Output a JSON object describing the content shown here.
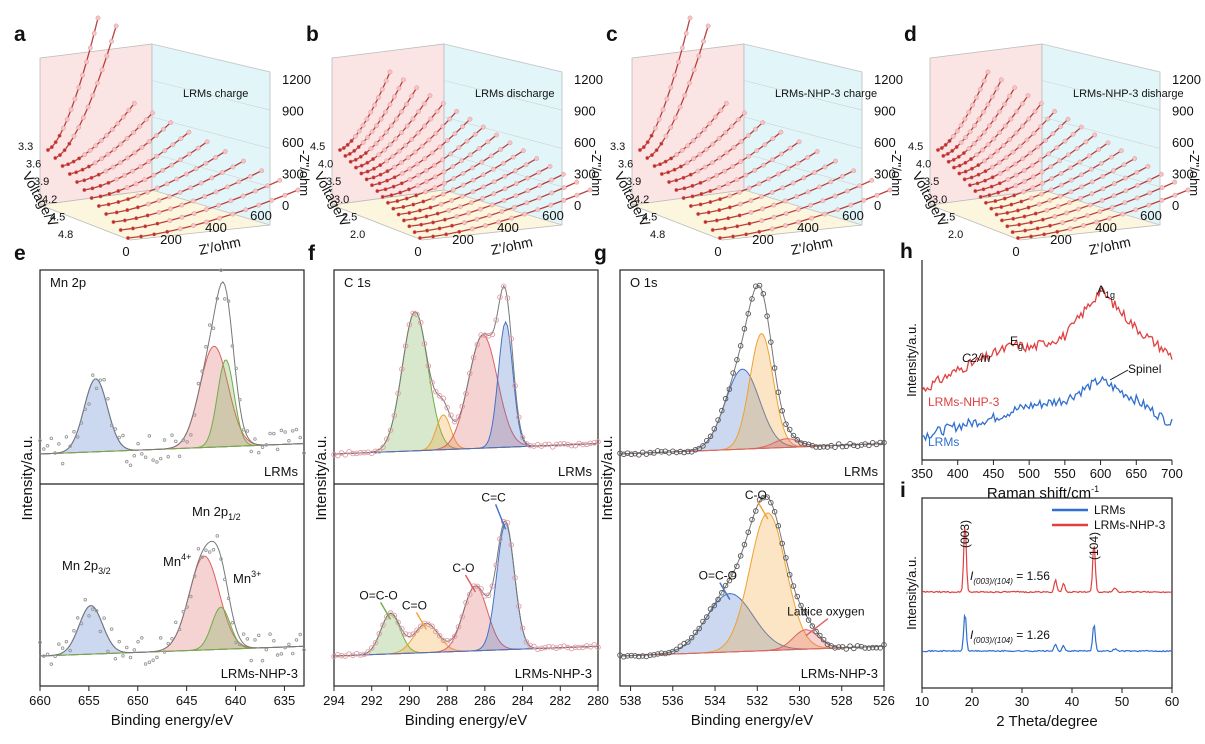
{
  "chart_data": [
    {
      "id": "a",
      "panel_label": "a",
      "type": "scatter",
      "title": "LRMs charge",
      "xlabel": "Z'/ohm",
      "ylabel": "-Z''/ohm",
      "zlabel": "Voltage/V",
      "x_ticks": [
        "0",
        "200",
        "400",
        "600"
      ],
      "z_ticks": [
        "0",
        "300",
        "600",
        "900",
        "1200"
      ],
      "voltage_ticks": [
        "3.3",
        "3.6",
        "3.9",
        "4.2",
        "4.5",
        "4.8"
      ],
      "xlim": [
        0,
        600
      ],
      "zlim": [
        0,
        1200
      ],
      "series_count": 12
    },
    {
      "id": "b",
      "panel_label": "b",
      "type": "scatter",
      "title": "LRMs discharge",
      "xlabel": "Z'/ohm",
      "ylabel": "-Z''/ohm",
      "zlabel": "Voltage/V",
      "x_ticks": [
        "0",
        "200",
        "400",
        "600"
      ],
      "z_ticks": [
        "0",
        "300",
        "600",
        "900",
        "1200"
      ],
      "voltage_ticks": [
        "4.5",
        "4.0",
        "3.5",
        "3.0",
        "2.5",
        "2.0"
      ],
      "xlim": [
        0,
        600
      ],
      "zlim": [
        0,
        1200
      ],
      "series_count": 16
    },
    {
      "id": "c",
      "panel_label": "c",
      "type": "scatter",
      "title": "LRMs-NHP-3 charge",
      "xlabel": "Z'/ohm",
      "ylabel": "-Z''/ohm",
      "zlabel": "Voltage/V",
      "x_ticks": [
        "0",
        "200",
        "400",
        "600"
      ],
      "z_ticks": [
        "0",
        "300",
        "600",
        "900",
        "1200"
      ],
      "voltage_ticks": [
        "3.3",
        "3.6",
        "3.9",
        "4.2",
        "4.5",
        "4.8"
      ],
      "xlim": [
        0,
        600
      ],
      "zlim": [
        0,
        1200
      ],
      "series_count": 12
    },
    {
      "id": "d",
      "panel_label": "d",
      "type": "scatter",
      "title": "LRMs-NHP-3 disharge",
      "xlabel": "Z'/ohm",
      "ylabel": "-Z''/ohm",
      "zlabel": "Voltage/V",
      "x_ticks": [
        "0",
        "200",
        "400",
        "600"
      ],
      "z_ticks": [
        "0",
        "300",
        "600",
        "900",
        "1200"
      ],
      "voltage_ticks": [
        "4.5",
        "4.0",
        "3.5",
        "3.0",
        "2.5",
        "2.0"
      ],
      "xlim": [
        0,
        600
      ],
      "zlim": [
        0,
        1200
      ],
      "series_count": 16
    },
    {
      "id": "e",
      "panel_label": "e",
      "type": "line",
      "title": "Mn 2p",
      "xlabel": "Binding energy/eV",
      "ylabel": "Intensity/a.u.",
      "x_ticks": [
        "660",
        "655",
        "650",
        "645",
        "640",
        "635"
      ],
      "xlim": [
        660,
        633
      ],
      "subpanels": [
        {
          "sample": "LRMs",
          "peaks": [
            {
              "label": "",
              "center": 654.3,
              "height": 0.42,
              "fwhm": 2.8,
              "color": "#4472c4"
            },
            {
              "label": "",
              "center": 642.2,
              "height": 0.58,
              "fwhm": 3.4,
              "color": "#e06060"
            },
            {
              "label": "",
              "center": 641.0,
              "height": 0.5,
              "fwhm": 2.0,
              "color": "#70ad47"
            }
          ],
          "annotations": []
        },
        {
          "sample": "LRMs-NHP-3",
          "peaks": [
            {
              "label": "Mn 2p3/2",
              "center": 654.8,
              "height": 0.3,
              "fwhm": 2.8,
              "color": "#4472c4"
            },
            {
              "label": "Mn4+",
              "center": 643.2,
              "height": 0.58,
              "fwhm": 3.6,
              "color": "#e06060"
            },
            {
              "label": "Mn3+",
              "center": 641.5,
              "height": 0.26,
              "fwhm": 2.2,
              "color": "#70ad47"
            }
          ],
          "annotations": [
            {
              "text": "Mn 2p",
              "sub": "1/2"
            },
            {
              "text": "Mn 2p",
              "sub": "3/2"
            },
            {
              "text": "Mn",
              "sup": "4+"
            },
            {
              "text": "Mn",
              "sup": "3+"
            }
          ]
        }
      ]
    },
    {
      "id": "f",
      "panel_label": "f",
      "type": "line",
      "title": "C 1s",
      "xlabel": "Binding energy/eV",
      "ylabel": "Intensity/a.u.",
      "x_ticks": [
        "294",
        "292",
        "290",
        "288",
        "286",
        "284",
        "282",
        "280"
      ],
      "xlim": [
        294,
        280
      ],
      "subpanels": [
        {
          "sample": "LRMs",
          "peaks": [
            {
              "label": "O=C-O",
              "center": 289.7,
              "height": 0.8,
              "fwhm": 1.6,
              "color": "#70ad47"
            },
            {
              "label": "C=O",
              "center": 288.2,
              "height": 0.2,
              "fwhm": 0.9,
              "color": "#f0a030"
            },
            {
              "label": "C-O",
              "center": 286.1,
              "height": 0.65,
              "fwhm": 1.8,
              "color": "#e06060"
            },
            {
              "label": "C=C",
              "center": 284.9,
              "height": 0.72,
              "fwhm": 0.9,
              "color": "#4472c4"
            }
          ]
        },
        {
          "sample": "LRMs-NHP-3",
          "peaks": [
            {
              "label": "O=C-O",
              "center": 291.0,
              "height": 0.25,
              "fwhm": 1.2,
              "color": "#70ad47"
            },
            {
              "label": "C=O",
              "center": 289.1,
              "height": 0.18,
              "fwhm": 1.5,
              "color": "#f0a030"
            },
            {
              "label": "C-O",
              "center": 286.5,
              "height": 0.4,
              "fwhm": 1.5,
              "color": "#e06060"
            },
            {
              "label": "C=C",
              "center": 284.9,
              "height": 0.78,
              "fwhm": 1.1,
              "color": "#4472c4"
            }
          ]
        }
      ]
    },
    {
      "id": "g",
      "panel_label": "g",
      "type": "line",
      "title": "O 1s",
      "xlabel": "Binding energy/eV",
      "ylabel": "Intensity/a.u.",
      "x_ticks": [
        "538",
        "536",
        "534",
        "532",
        "530",
        "528",
        "526"
      ],
      "xlim": [
        538.5,
        526
      ],
      "subpanels": [
        {
          "sample": "LRMs",
          "peaks": [
            {
              "label": "",
              "center": 532.7,
              "height": 0.46,
              "fwhm": 1.9,
              "color": "#4472c4"
            },
            {
              "label": "",
              "center": 531.8,
              "height": 0.66,
              "fwhm": 1.3,
              "color": "#f0a030"
            },
            {
              "label": "",
              "center": 530.6,
              "height": 0.05,
              "fwhm": 1.4,
              "color": "#e06060"
            }
          ]
        },
        {
          "sample": "LRMs-NHP-3",
          "peaks": [
            {
              "label": "O=C-O",
              "center": 533.3,
              "height": 0.36,
              "fwhm": 2.6,
              "color": "#4472c4"
            },
            {
              "label": "C-O",
              "center": 531.5,
              "height": 0.85,
              "fwhm": 2.0,
              "color": "#f0a030"
            },
            {
              "label": "Lattice oxygen",
              "center": 529.7,
              "height": 0.12,
              "fwhm": 1.4,
              "color": "#e06060"
            }
          ]
        }
      ]
    },
    {
      "id": "h",
      "panel_label": "h",
      "type": "line",
      "title": "",
      "xlabel": "Raman shift/cm",
      "xlabel_sup": "-1",
      "ylabel": "Intensity/a.u.",
      "x": [
        350,
        400,
        450,
        480,
        500,
        550,
        600,
        650,
        700
      ],
      "x_ticks": [
        "350",
        "400",
        "450",
        "500",
        "550",
        "600",
        "650",
        "700"
      ],
      "xlim": [
        350,
        700
      ],
      "series": [
        {
          "name": "LRMs-NHP-3",
          "color": "#e04040",
          "values": [
            0.35,
            0.45,
            0.53,
            0.58,
            0.56,
            0.62,
            0.85,
            0.66,
            0.52
          ]
        },
        {
          "name": "LRMs",
          "color": "#2f6fd0",
          "values": [
            0.12,
            0.17,
            0.21,
            0.25,
            0.27,
            0.3,
            0.4,
            0.3,
            0.18
          ]
        }
      ],
      "annotations": [
        {
          "text": "A",
          "sub": "1g"
        },
        {
          "text": "E",
          "sub": "g"
        },
        {
          "text": "C2/m"
        },
        {
          "text": "Spinel"
        }
      ]
    },
    {
      "id": "i",
      "panel_label": "i",
      "type": "line",
      "title": "",
      "xlabel": "2 Theta/degree",
      "ylabel": "Intensity/a.u.",
      "x_ticks": [
        "10",
        "20",
        "30",
        "40",
        "50",
        "60"
      ],
      "xlim": [
        10,
        60
      ],
      "legend": [
        "LRMs",
        "LRMs-NHP-3"
      ],
      "legend_colors": [
        "#2f6fd0",
        "#e04040"
      ],
      "peaks": [
        {
          "label": "(003)",
          "two_theta": 18.6
        },
        {
          "label": "(104)",
          "two_theta": 44.4
        }
      ],
      "ratio_labels": [
        {
          "text": "= 1.56",
          "sample": "LRMs-NHP-3"
        },
        {
          "text": "= 1.26",
          "sample": "LRMs"
        }
      ],
      "ratio_prefix": "I",
      "ratio_sub": "(003)/(104)"
    }
  ]
}
